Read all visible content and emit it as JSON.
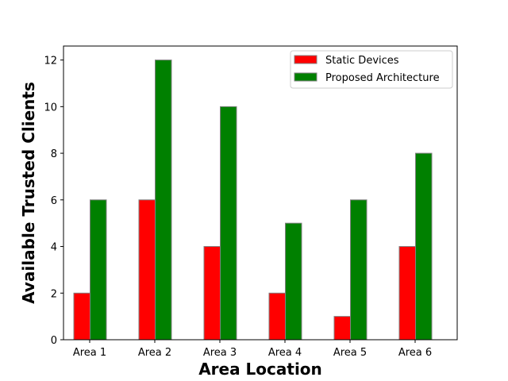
{
  "chart_data": {
    "type": "bar",
    "title": "",
    "xlabel": "Area Location",
    "ylabel": "Available Trusted Clients",
    "categories": [
      "Area 1",
      "Area 2",
      "Area 3",
      "Area 4",
      "Area 5",
      "Area 6"
    ],
    "series": [
      {
        "name": "Static Devices",
        "values": [
          2,
          6,
          4,
          2,
          1,
          4
        ],
        "color": "#ff0000"
      },
      {
        "name": "Proposed Architecture",
        "values": [
          6,
          12,
          10,
          5,
          6,
          8
        ],
        "color": "#008000"
      }
    ],
    "ylim": [
      0,
      12.6
    ],
    "yticks": [
      0,
      2,
      4,
      6,
      8,
      10,
      12
    ],
    "grid": false,
    "legend_position": "top-right"
  }
}
